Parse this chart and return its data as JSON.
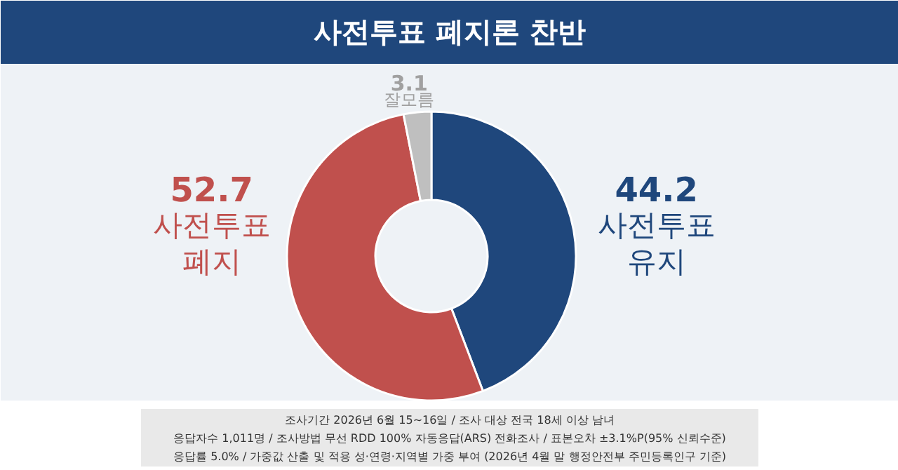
{
  "chart_data": {
    "type": "donut",
    "title": "사전투표 폐지론 찬반",
    "categories": [
      "사전투표\n유지",
      "사전투표\n폐지",
      "잘모름"
    ],
    "values": [
      44.2,
      52.7,
      3.1
    ],
    "colors": [
      "#1f477c",
      "#c0504d",
      "#bfbfbf"
    ],
    "data_labels": true,
    "annotations": [
      "조사기간 2026년 6월 15~16일 / 조사 대상 전국 18세 이상 남녀",
      "응답자수 1,011명 / 조사방법 무선 RDD 100% 자동응답(ARS) 전화조사 / 표본오차 ±3.1%P(95% 신뢰수준)",
      "응답률 5.0% / 가중값 산출 및 적용 성·연령·지역별 가중 부여 (2026년 4월 말 행정안전부 주민등록인구 기준)"
    ]
  }
}
